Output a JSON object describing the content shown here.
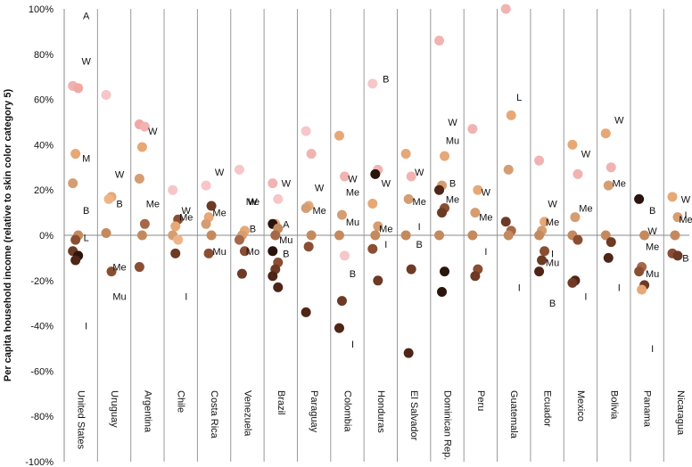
{
  "chart_data": {
    "type": "scatter",
    "title": "",
    "ylabel": "Per capita household income (relative to skin color category 5)",
    "xlabel": "",
    "ylim": [
      -100,
      100
    ],
    "yticks": [
      100,
      80,
      60,
      40,
      20,
      0,
      -20,
      -40,
      -60,
      -80,
      -100
    ],
    "ytick_labels": [
      "100%",
      "80%",
      "60%",
      "40%",
      "20%",
      "0%",
      "-20%",
      "-40%",
      "-60%",
      "-80%",
      "-100%"
    ],
    "color_scale": [
      "#f6c6c8",
      "#f1b3b1",
      "#f0a8a6",
      "#eeb489",
      "#e6a877",
      "#d59d72",
      "#c48a5e",
      "#a66848",
      "#8a4e33",
      "#6d3a25",
      "#4e2516",
      "#2b140c"
    ],
    "categories": [
      "United States",
      "Uruguay",
      "Argentina",
      "Chile",
      "Costa Rica",
      "Venezuela",
      "Brazil",
      "Paraguay",
      "Colombia",
      "Honduras",
      "El Salvador",
      "Dominican Rep.",
      "Peru",
      "Guatemala",
      "Ecuador",
      "Mexico",
      "Bolivia",
      "Panama",
      "Nicaragua"
    ],
    "series": [
      {
        "country": "United States",
        "points": [
          {
            "v": 66,
            "s": 1
          },
          {
            "v": 65,
            "s": 2
          },
          {
            "v": 36,
            "s": 4
          },
          {
            "v": 23,
            "s": 5
          },
          {
            "v": 0,
            "s": 6
          },
          {
            "v": -2,
            "s": 8
          },
          {
            "v": -7,
            "s": 9
          },
          {
            "v": -9,
            "s": 11
          },
          {
            "v": -11,
            "s": 10
          }
        ]
      },
      {
        "country": "Uruguay",
        "points": [
          {
            "v": 62,
            "s": 0
          },
          {
            "v": 17,
            "s": 4
          },
          {
            "v": 16,
            "s": 3
          },
          {
            "v": 1,
            "s": 6
          },
          {
            "v": -16,
            "s": 8
          }
        ]
      },
      {
        "country": "Argentina",
        "points": [
          {
            "v": 49,
            "s": 2
          },
          {
            "v": 48,
            "s": 1
          },
          {
            "v": 39,
            "s": 4
          },
          {
            "v": 25,
            "s": 5
          },
          {
            "v": 5,
            "s": 7
          },
          {
            "v": 0,
            "s": 6
          },
          {
            "v": -14,
            "s": 8
          }
        ]
      },
      {
        "country": "Chile",
        "points": [
          {
            "v": 20,
            "s": 0
          },
          {
            "v": 7,
            "s": 8
          },
          {
            "v": 4,
            "s": 4
          },
          {
            "v": 0,
            "s": 5
          },
          {
            "v": -2,
            "s": 3
          },
          {
            "v": -8,
            "s": 9
          }
        ]
      },
      {
        "country": "Costa Rica",
        "points": [
          {
            "v": 22,
            "s": 0
          },
          {
            "v": 13,
            "s": 9
          },
          {
            "v": 8,
            "s": 4
          },
          {
            "v": 5,
            "s": 5
          },
          {
            "v": 0,
            "s": 6
          },
          {
            "v": -8,
            "s": 8
          }
        ]
      },
      {
        "country": "Venezuela",
        "points": [
          {
            "v": 29,
            "s": 0
          },
          {
            "v": 2,
            "s": 4
          },
          {
            "v": 0,
            "s": 5
          },
          {
            "v": -2,
            "s": 7
          },
          {
            "v": -7,
            "s": 8
          },
          {
            "v": -17,
            "s": 9
          }
        ]
      },
      {
        "country": "Brazil",
        "points": [
          {
            "v": 23,
            "s": 1
          },
          {
            "v": 16,
            "s": 0
          },
          {
            "v": 5,
            "s": 4
          },
          {
            "v": 5,
            "s": 11
          },
          {
            "v": 3,
            "s": 6
          },
          {
            "v": 0,
            "s": 7
          },
          {
            "v": -7,
            "s": 11
          },
          {
            "v": -12,
            "s": 8
          },
          {
            "v": -15,
            "s": 9
          },
          {
            "v": -18,
            "s": 10
          },
          {
            "v": -23,
            "s": 10
          }
        ]
      },
      {
        "country": "Paraguay",
        "points": [
          {
            "v": 46,
            "s": 0
          },
          {
            "v": 36,
            "s": 1
          },
          {
            "v": 13,
            "s": 4
          },
          {
            "v": 12,
            "s": 5
          },
          {
            "v": 0,
            "s": 6
          },
          {
            "v": -5,
            "s": 8
          },
          {
            "v": -34,
            "s": 10
          }
        ]
      },
      {
        "country": "Colombia",
        "points": [
          {
            "v": 44,
            "s": 4
          },
          {
            "v": 26,
            "s": 1
          },
          {
            "v": 9,
            "s": 5
          },
          {
            "v": 0,
            "s": 6
          },
          {
            "v": -9,
            "s": 0
          },
          {
            "v": -29,
            "s": 9
          },
          {
            "v": -41,
            "s": 10
          }
        ]
      },
      {
        "country": "Honduras",
        "points": [
          {
            "v": 67,
            "s": 0
          },
          {
            "v": 29,
            "s": 1
          },
          {
            "v": 27,
            "s": 11
          },
          {
            "v": 14,
            "s": 4
          },
          {
            "v": 4,
            "s": 5
          },
          {
            "v": 0,
            "s": 6
          },
          {
            "v": -6,
            "s": 8
          },
          {
            "v": -20,
            "s": 9
          }
        ]
      },
      {
        "country": "El Salvador",
        "points": [
          {
            "v": 36,
            "s": 4
          },
          {
            "v": 26,
            "s": 1
          },
          {
            "v": 16,
            "s": 5
          },
          {
            "v": 0,
            "s": 6
          },
          {
            "v": -15,
            "s": 9
          },
          {
            "v": -52,
            "s": 10
          }
        ]
      },
      {
        "country": "Dominican Rep.",
        "points": [
          {
            "v": 86,
            "s": 1
          },
          {
            "v": 35,
            "s": 4
          },
          {
            "v": 22,
            "s": 5
          },
          {
            "v": 20,
            "s": 10
          },
          {
            "v": 12,
            "s": 8
          },
          {
            "v": 10,
            "s": 9
          },
          {
            "v": 0,
            "s": 6
          },
          {
            "v": -16,
            "s": 11
          },
          {
            "v": -25,
            "s": 11
          }
        ]
      },
      {
        "country": "Peru",
        "points": [
          {
            "v": 47,
            "s": 1
          },
          {
            "v": 20,
            "s": 4
          },
          {
            "v": 10,
            "s": 5
          },
          {
            "v": 0,
            "s": 6
          },
          {
            "v": -15,
            "s": 8
          },
          {
            "v": -18,
            "s": 9
          }
        ]
      },
      {
        "country": "Guatemala",
        "points": [
          {
            "v": 100,
            "s": 1
          },
          {
            "v": 53,
            "s": 4
          },
          {
            "v": 29,
            "s": 5
          },
          {
            "v": 6,
            "s": 9
          },
          {
            "v": 2,
            "s": 7
          },
          {
            "v": 0,
            "s": 6
          }
        ]
      },
      {
        "country": "Ecuador",
        "points": [
          {
            "v": 33,
            "s": 1
          },
          {
            "v": 6,
            "s": 4
          },
          {
            "v": 2,
            "s": 5
          },
          {
            "v": 0,
            "s": 6
          },
          {
            "v": -7,
            "s": 8
          },
          {
            "v": -11,
            "s": 9
          },
          {
            "v": -16,
            "s": 10
          }
        ]
      },
      {
        "country": "Mexico",
        "points": [
          {
            "v": 40,
            "s": 4
          },
          {
            "v": 27,
            "s": 1
          },
          {
            "v": 8,
            "s": 5
          },
          {
            "v": 0,
            "s": 6
          },
          {
            "v": -2,
            "s": 8
          },
          {
            "v": -20,
            "s": 10
          },
          {
            "v": -21,
            "s": 9
          }
        ]
      },
      {
        "country": "Bolivia",
        "points": [
          {
            "v": 45,
            "s": 4
          },
          {
            "v": 30,
            "s": 1
          },
          {
            "v": 22,
            "s": 5
          },
          {
            "v": 0,
            "s": 6
          },
          {
            "v": -3,
            "s": 9
          },
          {
            "v": -10,
            "s": 10
          }
        ]
      },
      {
        "country": "Panama",
        "points": [
          {
            "v": 16,
            "s": 11
          },
          {
            "v": 0,
            "s": 6
          },
          {
            "v": -14,
            "s": 7
          },
          {
            "v": -16,
            "s": 8
          },
          {
            "v": -22,
            "s": 9
          },
          {
            "v": -24,
            "s": 4
          }
        ]
      },
      {
        "country": "Nicaragua",
        "points": [
          {
            "v": 17,
            "s": 4
          },
          {
            "v": 8,
            "s": 5
          },
          {
            "v": 0,
            "s": 6
          },
          {
            "v": -8,
            "s": 8
          },
          {
            "v": -9,
            "s": 9
          }
        ]
      }
    ],
    "annotations": [
      {
        "country": "United States",
        "labels": [
          {
            "t": "A",
            "v": 97
          },
          {
            "t": "W",
            "v": 77
          },
          {
            "t": "M",
            "v": 34
          },
          {
            "t": "B",
            "v": 11
          },
          {
            "t": "L",
            "v": -1
          },
          {
            "t": "I",
            "v": -40
          }
        ]
      },
      {
        "country": "Uruguay",
        "labels": [
          {
            "t": "W",
            "v": 27
          },
          {
            "t": "B",
            "v": 14
          },
          {
            "t": "Me",
            "v": -14
          },
          {
            "t": "Mu",
            "v": -27
          }
        ]
      },
      {
        "country": "Argentina",
        "labels": [
          {
            "t": "W",
            "v": 46
          },
          {
            "t": "Me",
            "v": 14
          }
        ]
      },
      {
        "country": "Chile",
        "labels": [
          {
            "t": "W",
            "v": 11
          },
          {
            "t": "Me",
            "v": 8
          },
          {
            "t": "I",
            "v": -27
          }
        ]
      },
      {
        "country": "Costa Rica",
        "labels": [
          {
            "t": "W",
            "v": 28
          },
          {
            "t": "Me",
            "v": 10
          },
          {
            "t": "Mu",
            "v": -7
          }
        ]
      },
      {
        "country": "Venezuela",
        "labels": [
          {
            "t": "Me",
            "v": 15
          },
          {
            "t": "W",
            "v": 15
          },
          {
            "t": "B",
            "v": 3
          },
          {
            "t": "Mo",
            "v": -7
          }
        ]
      },
      {
        "country": "Brazil",
        "labels": [
          {
            "t": "W",
            "v": 23
          },
          {
            "t": "A",
            "v": 5
          },
          {
            "t": "Mu",
            "v": -2
          },
          {
            "t": "B",
            "v": -8
          }
        ]
      },
      {
        "country": "Paraguay",
        "labels": [
          {
            "t": "W",
            "v": 21
          },
          {
            "t": "Me",
            "v": 11
          }
        ]
      },
      {
        "country": "Colombia",
        "labels": [
          {
            "t": "W",
            "v": 25
          },
          {
            "t": "Me",
            "v": 19
          },
          {
            "t": "Mu",
            "v": 6
          },
          {
            "t": "B",
            "v": -17
          },
          {
            "t": "I",
            "v": -48
          }
        ]
      },
      {
        "country": "Honduras",
        "labels": [
          {
            "t": "B",
            "v": 69
          },
          {
            "t": "W",
            "v": 23
          },
          {
            "t": "Me",
            "v": 3
          },
          {
            "t": "I",
            "v": -4
          }
        ]
      },
      {
        "country": "El Salvador",
        "labels": [
          {
            "t": "W",
            "v": 28
          },
          {
            "t": "Me",
            "v": 15
          },
          {
            "t": "I",
            "v": 4
          },
          {
            "t": "B",
            "v": -4
          }
        ]
      },
      {
        "country": "Dominican Rep.",
        "labels": [
          {
            "t": "W",
            "v": 50
          },
          {
            "t": "Mu",
            "v": 42
          },
          {
            "t": "B",
            "v": 23
          },
          {
            "t": "Me",
            "v": 16
          }
        ]
      },
      {
        "country": "Peru",
        "labels": [
          {
            "t": "W",
            "v": 19
          },
          {
            "t": "Me",
            "v": 8
          },
          {
            "t": "I",
            "v": -7
          }
        ]
      },
      {
        "country": "Guatemala",
        "labels": [
          {
            "t": "L",
            "v": 61
          },
          {
            "t": "I",
            "v": -23
          }
        ]
      },
      {
        "country": "Ecuador",
        "labels": [
          {
            "t": "W",
            "v": 14
          },
          {
            "t": "Me",
            "v": 6
          },
          {
            "t": "I",
            "v": -8
          },
          {
            "t": "Mu",
            "v": -12
          },
          {
            "t": "B",
            "v": -30
          }
        ]
      },
      {
        "country": "Mexico",
        "labels": [
          {
            "t": "W",
            "v": 36
          },
          {
            "t": "Me",
            "v": 12
          },
          {
            "t": "I",
            "v": -27
          }
        ]
      },
      {
        "country": "Bolivia",
        "labels": [
          {
            "t": "W",
            "v": 51
          },
          {
            "t": "Me",
            "v": 23
          },
          {
            "t": "I",
            "v": -23
          }
        ]
      },
      {
        "country": "Panama",
        "labels": [
          {
            "t": "B",
            "v": 11
          },
          {
            "t": "W",
            "v": 2
          },
          {
            "t": "Me",
            "v": -5
          },
          {
            "t": "Mu",
            "v": -17
          },
          {
            "t": "I",
            "v": -50
          }
        ]
      },
      {
        "country": "Nicaragua",
        "labels": [
          {
            "t": "W",
            "v": 16
          },
          {
            "t": "I",
            "v": 9
          },
          {
            "t": "Me",
            "v": 7
          },
          {
            "t": "B",
            "v": -10
          }
        ]
      }
    ]
  }
}
